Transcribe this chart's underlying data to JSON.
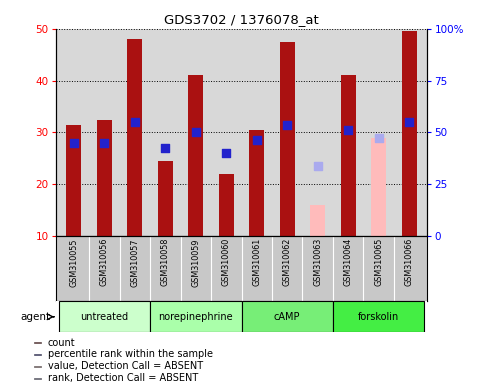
{
  "title": "GDS3702 / 1376078_at",
  "samples": [
    "GSM310055",
    "GSM310056",
    "GSM310057",
    "GSM310058",
    "GSM310059",
    "GSM310060",
    "GSM310061",
    "GSM310062",
    "GSM310063",
    "GSM310064",
    "GSM310065",
    "GSM310066"
  ],
  "bar_heights": [
    31.5,
    32.5,
    48.0,
    24.5,
    41.0,
    22.0,
    30.5,
    47.5,
    null,
    41.0,
    null,
    49.5
  ],
  "bar_absent_heights": [
    null,
    null,
    null,
    null,
    null,
    null,
    null,
    null,
    16.0,
    null,
    29.0,
    null
  ],
  "rank_values": [
    28.0,
    28.0,
    32.0,
    27.0,
    30.0,
    26.0,
    28.5,
    31.5,
    null,
    30.5,
    null,
    32.0
  ],
  "rank_absent_values": [
    null,
    null,
    null,
    null,
    null,
    null,
    null,
    null,
    23.5,
    null,
    29.0,
    null
  ],
  "bar_color": "#aa1111",
  "bar_absent_color": "#ffbbbb",
  "rank_color": "#2222cc",
  "rank_absent_color": "#aaaaee",
  "ylim_left": [
    10,
    50
  ],
  "ylim_right": [
    0,
    100
  ],
  "yticks_left": [
    10,
    20,
    30,
    40,
    50
  ],
  "yticks_right": [
    0,
    25,
    50,
    75,
    100
  ],
  "ytick_labels_right": [
    "0",
    "25",
    "50",
    "75",
    "100%"
  ],
  "bar_width": 0.5,
  "rank_marker_size": 28,
  "plot_bg_color": "#d8d8d8",
  "sample_bg_color": "#c8c8c8",
  "group_data": [
    {
      "name": "untreated",
      "start": 0,
      "end": 2,
      "color": "#ccffcc"
    },
    {
      "name": "norepinephrine",
      "start": 3,
      "end": 5,
      "color": "#aaffaa"
    },
    {
      "name": "cAMP",
      "start": 6,
      "end": 8,
      "color": "#77ee77"
    },
    {
      "name": "forskolin",
      "start": 9,
      "end": 11,
      "color": "#44ee44"
    }
  ],
  "legend_items": [
    {
      "color": "#aa1111",
      "label": "count",
      "marker": "square"
    },
    {
      "color": "#2222cc",
      "label": "percentile rank within the sample",
      "marker": "square"
    },
    {
      "color": "#ffbbbb",
      "label": "value, Detection Call = ABSENT",
      "marker": "square"
    },
    {
      "color": "#aaaaee",
      "label": "rank, Detection Call = ABSENT",
      "marker": "square"
    }
  ]
}
